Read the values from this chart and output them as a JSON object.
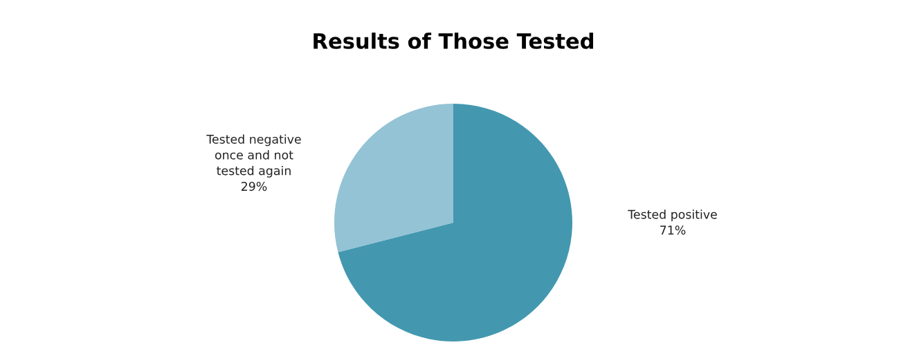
{
  "chart_data": {
    "type": "pie",
    "title": "Results of Those Tested",
    "categories": [
      "Tested positive",
      "Tested negative\nonce and not\ntested again"
    ],
    "values": [
      71,
      29
    ],
    "colors": [
      "#4398b0",
      "#93c3d5"
    ],
    "value_labels": [
      "71%",
      "29%"
    ],
    "legend": false
  }
}
